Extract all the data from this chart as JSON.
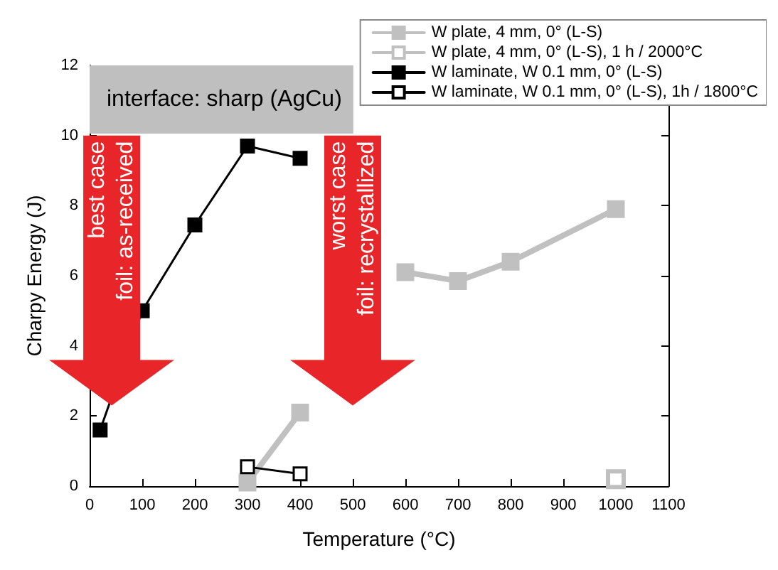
{
  "chart_data": {
    "type": "line",
    "xlabel": "Temperature (°C)",
    "ylabel": "Charpy Energy (J)",
    "xlim": [
      0,
      1100
    ],
    "xticks": [
      0,
      100,
      200,
      300,
      400,
      500,
      600,
      700,
      800,
      900,
      1000,
      1100
    ],
    "ylim": [
      0,
      12
    ],
    "yticks": [
      0,
      2,
      4,
      6,
      8,
      10,
      12
    ],
    "legend": "top right",
    "marker": "square",
    "line_style": "solid",
    "grid": false,
    "series": [
      {
        "name": "W plate, 4 mm, 0° (L-S)",
        "color": "#c0c0c0",
        "x": [
          300,
          400,
          500,
          600,
          700,
          800,
          1000
        ],
        "values": [
          0.1,
          2.1,
          null,
          6.1,
          5.85,
          6.4,
          7.9
        ]
      },
      {
        "name": "W plate, 4 mm, 0° (L-S), 1 h / 2000°C",
        "color": "#c0c0c0",
        "x": [
          1000
        ],
        "values": [
          0.2
        ]
      },
      {
        "name": "W laminate, W 0.1 mm, 0° (L-S)",
        "color": "#000000",
        "x": [
          20,
          100,
          200,
          300,
          400
        ],
        "values": [
          1.6,
          5.0,
          7.45,
          9.7,
          9.35
        ]
      },
      {
        "name": "W laminate, W 0.1 mm, 0° (L-S), 1h / 1800°C",
        "color": "#000000",
        "x": [
          300,
          400
        ],
        "values": [
          0.55,
          0.35
        ]
      }
    ],
    "annotations": [
      "interface: sharp (AgCu)",
      "best case\nfoil: as-received",
      "worst case\nfoil: recrystallized"
    ]
  }
}
